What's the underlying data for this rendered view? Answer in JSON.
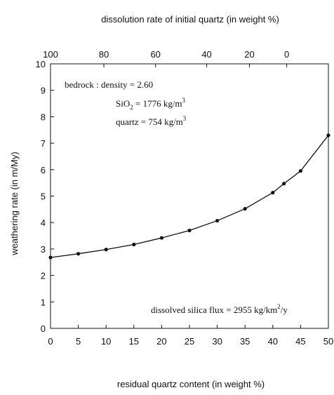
{
  "chart_data": {
    "type": "line",
    "title": "",
    "x": [
      0,
      5,
      10,
      15,
      20,
      25,
      30,
      35,
      40,
      42,
      45,
      50
    ],
    "series": [
      {
        "values": [
          2.68,
          2.82,
          2.98,
          3.17,
          3.42,
          3.7,
          4.07,
          4.52,
          5.13,
          5.47,
          5.95,
          7.3
        ]
      }
    ],
    "xlabel": "residual quartz content  (in weight %)",
    "ylabel": "weathering rate  (in m/My)",
    "xlim": [
      0,
      50
    ],
    "ylim": [
      0,
      10
    ],
    "x_ticks": [
      "0",
      "5",
      "10",
      "15",
      "20",
      "25",
      "30",
      "35",
      "40",
      "45",
      "50"
    ],
    "y_ticks": [
      "0",
      "1",
      "2",
      "3",
      "4",
      "5",
      "6",
      "7",
      "8",
      "9",
      "10"
    ],
    "top_axis": {
      "label": "dissolution rate of initial quartz  (in weight %)",
      "ticks": [
        {
          "label": "100",
          "x": 0
        },
        {
          "label": "80",
          "x": 9.6
        },
        {
          "label": "60",
          "x": 18.9
        },
        {
          "label": "40",
          "x": 28.1
        },
        {
          "label": "20",
          "x": 35.8
        },
        {
          "label": "0",
          "x": 42.5
        }
      ]
    },
    "grid": false,
    "annotations": {
      "bedrock_line1": "bedrock :  density = 2.60",
      "bedrock_line2_pre": "SiO",
      "bedrock_line2_sub": "2",
      "bedrock_line2_post": " = 1776 kg/m",
      "bedrock_line2_sup": "3",
      "bedrock_line3_pre": "quartz = 754 kg/m",
      "bedrock_line3_sup": "3",
      "flux_pre": "dissolved  silica  flux = 2955 kg/km",
      "flux_sup": "2",
      "flux_post": "/y"
    }
  }
}
